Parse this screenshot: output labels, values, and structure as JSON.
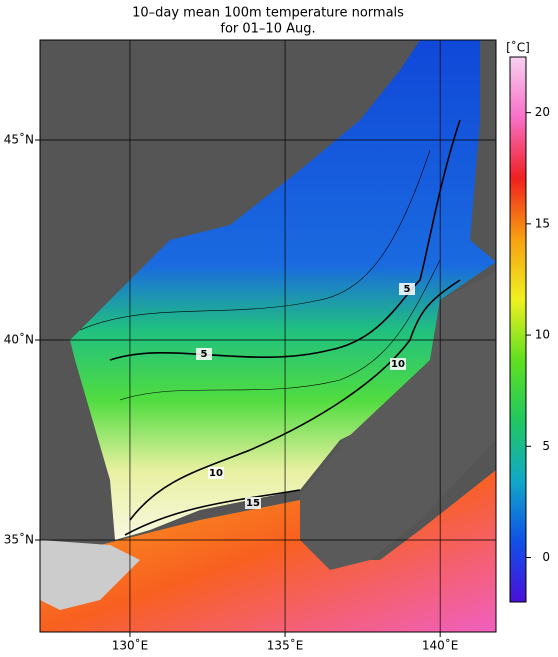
{
  "title": [
    "10–day mean 100m temperature normals",
    "for 01–10 Aug."
  ],
  "map": {
    "lon_range": [
      127.1,
      141.8
    ],
    "lat_range": [
      32.7,
      47.5
    ],
    "lon_ticks": [
      {
        "value": 130,
        "label": "130˚E"
      },
      {
        "value": 135,
        "label": "135˚E"
      },
      {
        "value": 140,
        "label": "140˚E"
      }
    ],
    "lat_ticks": [
      {
        "value": 35,
        "label": "35˚N"
      },
      {
        "value": 40,
        "label": "40˚N"
      },
      {
        "value": 45,
        "label": "45˚N"
      }
    ]
  },
  "colorbar": {
    "unit": "[˚C]",
    "lim": [
      -2,
      22.5
    ],
    "ticks": [
      0,
      5,
      10,
      15,
      20
    ],
    "colors": [
      "#4a10d8",
      "#1050e8",
      "#10a8c8",
      "#20c860",
      "#60e020",
      "#f0f020",
      "#f8a010",
      "#f02020",
      "#f870c8",
      "#f8d0f0"
    ]
  },
  "contour_labels": [
    5,
    5,
    10,
    10,
    15
  ]
}
